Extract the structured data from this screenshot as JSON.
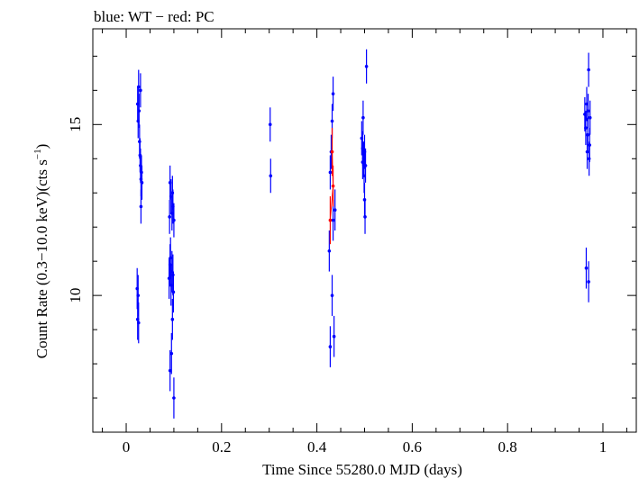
{
  "chart_data": {
    "type": "scatter",
    "title": "blue: WT − red: PC",
    "xlabel": "Time Since 55280.0 MJD (days)",
    "ylabel_main": "Count Rate (0.3−10.0 keV)(cts s",
    "ylabel_sup": "−1",
    "ylabel_end": ")",
    "xlim": [
      -0.07,
      1.07
    ],
    "ylim": [
      6.0,
      17.8
    ],
    "x_ticks": [
      0,
      0.2,
      0.4,
      0.6,
      0.8,
      1
    ],
    "x_tick_labels": [
      "0",
      "0.2",
      "0.4",
      "0.6",
      "0.8",
      "1"
    ],
    "y_ticks": [
      10,
      15
    ],
    "y_tick_labels": [
      "10",
      "15"
    ],
    "grid": false,
    "series": [
      {
        "name": "WT",
        "color": "#0000ff",
        "points": [
          [
            0.024,
            15.6,
            0.5
          ],
          [
            0.025,
            15.1,
            0.5
          ],
          [
            0.026,
            16.1,
            0.5
          ],
          [
            0.027,
            15.4,
            0.5
          ],
          [
            0.028,
            14.5,
            0.5
          ],
          [
            0.029,
            14.1,
            0.5
          ],
          [
            0.03,
            13.8,
            0.5
          ],
          [
            0.031,
            13.4,
            0.5
          ],
          [
            0.032,
            13.6,
            0.5
          ],
          [
            0.033,
            13.3,
            0.5
          ],
          [
            0.03,
            16.0,
            0.5
          ],
          [
            0.031,
            12.6,
            0.5
          ],
          [
            0.023,
            10.2,
            0.6
          ],
          [
            0.024,
            9.3,
            0.6
          ],
          [
            0.025,
            10.0,
            0.6
          ],
          [
            0.026,
            9.2,
            0.6
          ],
          [
            0.092,
            13.3,
            0.5
          ],
          [
            0.094,
            12.9,
            0.5
          ],
          [
            0.096,
            12.4,
            0.5
          ],
          [
            0.098,
            12.6,
            0.5
          ],
          [
            0.1,
            12.2,
            0.5
          ],
          [
            0.097,
            13.0,
            0.5
          ],
          [
            0.091,
            12.3,
            0.5
          ],
          [
            0.09,
            10.5,
            0.6
          ],
          [
            0.092,
            10.9,
            0.6
          ],
          [
            0.094,
            10.3,
            0.6
          ],
          [
            0.096,
            10.7,
            0.6
          ],
          [
            0.098,
            10.6,
            0.6
          ],
          [
            0.093,
            11.1,
            0.6
          ],
          [
            0.097,
            9.3,
            0.6
          ],
          [
            0.095,
            8.3,
            0.6
          ],
          [
            0.092,
            7.8,
            0.6
          ],
          [
            0.1,
            7.0,
            0.6
          ],
          [
            0.099,
            10.1,
            0.6
          ],
          [
            0.302,
            15.0,
            0.5
          ],
          [
            0.303,
            13.5,
            0.5
          ],
          [
            0.428,
            13.6,
            0.5
          ],
          [
            0.43,
            14.2,
            0.5
          ],
          [
            0.432,
            15.1,
            0.5
          ],
          [
            0.434,
            15.9,
            0.5
          ],
          [
            0.426,
            11.3,
            0.6
          ],
          [
            0.432,
            10.0,
            0.6
          ],
          [
            0.428,
            8.5,
            0.6
          ],
          [
            0.436,
            8.8,
            0.6
          ],
          [
            0.438,
            12.5,
            0.6
          ],
          [
            0.434,
            12.2,
            0.6
          ],
          [
            0.494,
            14.6,
            0.5
          ],
          [
            0.496,
            14.3,
            0.5
          ],
          [
            0.497,
            15.2,
            0.5
          ],
          [
            0.498,
            14.0,
            0.5
          ],
          [
            0.5,
            14.2,
            0.5
          ],
          [
            0.502,
            13.8,
            0.5
          ],
          [
            0.499,
            13.5,
            0.5
          ],
          [
            0.501,
            12.3,
            0.5
          ],
          [
            0.5,
            12.8,
            0.5
          ],
          [
            0.504,
            16.7,
            0.5
          ],
          [
            0.496,
            13.9,
            0.5
          ],
          [
            0.962,
            15.3,
            0.5
          ],
          [
            0.964,
            14.9,
            0.5
          ],
          [
            0.966,
            15.6,
            0.5
          ],
          [
            0.967,
            14.2,
            0.5
          ],
          [
            0.968,
            14.7,
            0.5
          ],
          [
            0.969,
            15.4,
            0.5
          ],
          [
            0.97,
            16.6,
            0.5
          ],
          [
            0.971,
            14.0,
            0.5
          ],
          [
            0.972,
            14.4,
            0.5
          ],
          [
            0.973,
            15.2,
            0.5
          ],
          [
            0.965,
            10.8,
            0.6
          ],
          [
            0.97,
            10.4,
            0.6
          ]
        ]
      },
      {
        "name": "PC",
        "color": "#ff0000",
        "points": [
          [
            0.428,
            12.2,
            0.7
          ],
          [
            0.432,
            14.2,
            0.7
          ],
          [
            0.434,
            13.2,
            0.6
          ]
        ]
      }
    ]
  }
}
